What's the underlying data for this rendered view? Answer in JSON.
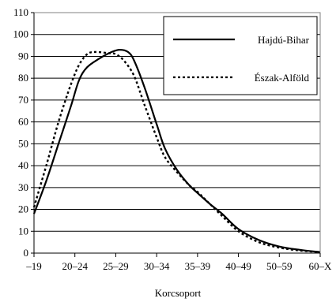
{
  "chart_data": {
    "type": "line",
    "xlabel": "Korcsoport",
    "ylabel": "",
    "ylim": [
      0,
      110
    ],
    "yticks": [
      0,
      10,
      20,
      30,
      40,
      50,
      60,
      70,
      80,
      90,
      100,
      110
    ],
    "categories": [
      "–19",
      "20–24",
      "25–29",
      "30–34",
      "35–39",
      "40–49",
      "50–59",
      "60–X"
    ],
    "grid": "horizontal",
    "legend_position": "top-right",
    "series": [
      {
        "name": "Hajdú-Bihar",
        "style": "solid",
        "color": "#000000",
        "points": [
          [
            0,
            18
          ],
          [
            0.3,
            33
          ],
          [
            0.6,
            50
          ],
          [
            0.9,
            67
          ],
          [
            1.1,
            79
          ],
          [
            1.3,
            85
          ],
          [
            1.6,
            89
          ],
          [
            1.9,
            92
          ],
          [
            2.1,
            93
          ],
          [
            2.3,
            92
          ],
          [
            2.45,
            88
          ],
          [
            2.7,
            76
          ],
          [
            3.0,
            59
          ],
          [
            3.2,
            48
          ],
          [
            3.5,
            38
          ],
          [
            3.8,
            31
          ],
          [
            4.0,
            27.5
          ],
          [
            4.3,
            22.5
          ],
          [
            4.6,
            18
          ],
          [
            5.0,
            11
          ],
          [
            5.5,
            6
          ],
          [
            6.0,
            3
          ],
          [
            6.5,
            1.5
          ],
          [
            7.0,
            0.5
          ]
        ]
      },
      {
        "name": "Észak-Alföld",
        "style": "dotted",
        "color": "#000000",
        "points": [
          [
            0,
            21
          ],
          [
            0.3,
            40
          ],
          [
            0.6,
            60
          ],
          [
            0.9,
            77
          ],
          [
            1.1,
            86
          ],
          [
            1.3,
            91
          ],
          [
            1.5,
            92
          ],
          [
            1.8,
            91.5
          ],
          [
            2.0,
            91
          ],
          [
            2.2,
            88
          ],
          [
            2.45,
            81
          ],
          [
            2.7,
            68
          ],
          [
            3.0,
            53
          ],
          [
            3.2,
            44
          ],
          [
            3.5,
            37
          ],
          [
            3.8,
            31
          ],
          [
            4.0,
            28
          ],
          [
            4.3,
            22.5
          ],
          [
            4.6,
            17
          ],
          [
            5.0,
            10
          ],
          [
            5.5,
            5
          ],
          [
            6.0,
            2.5
          ],
          [
            6.5,
            1.2
          ],
          [
            7.0,
            0.4
          ]
        ]
      }
    ]
  }
}
